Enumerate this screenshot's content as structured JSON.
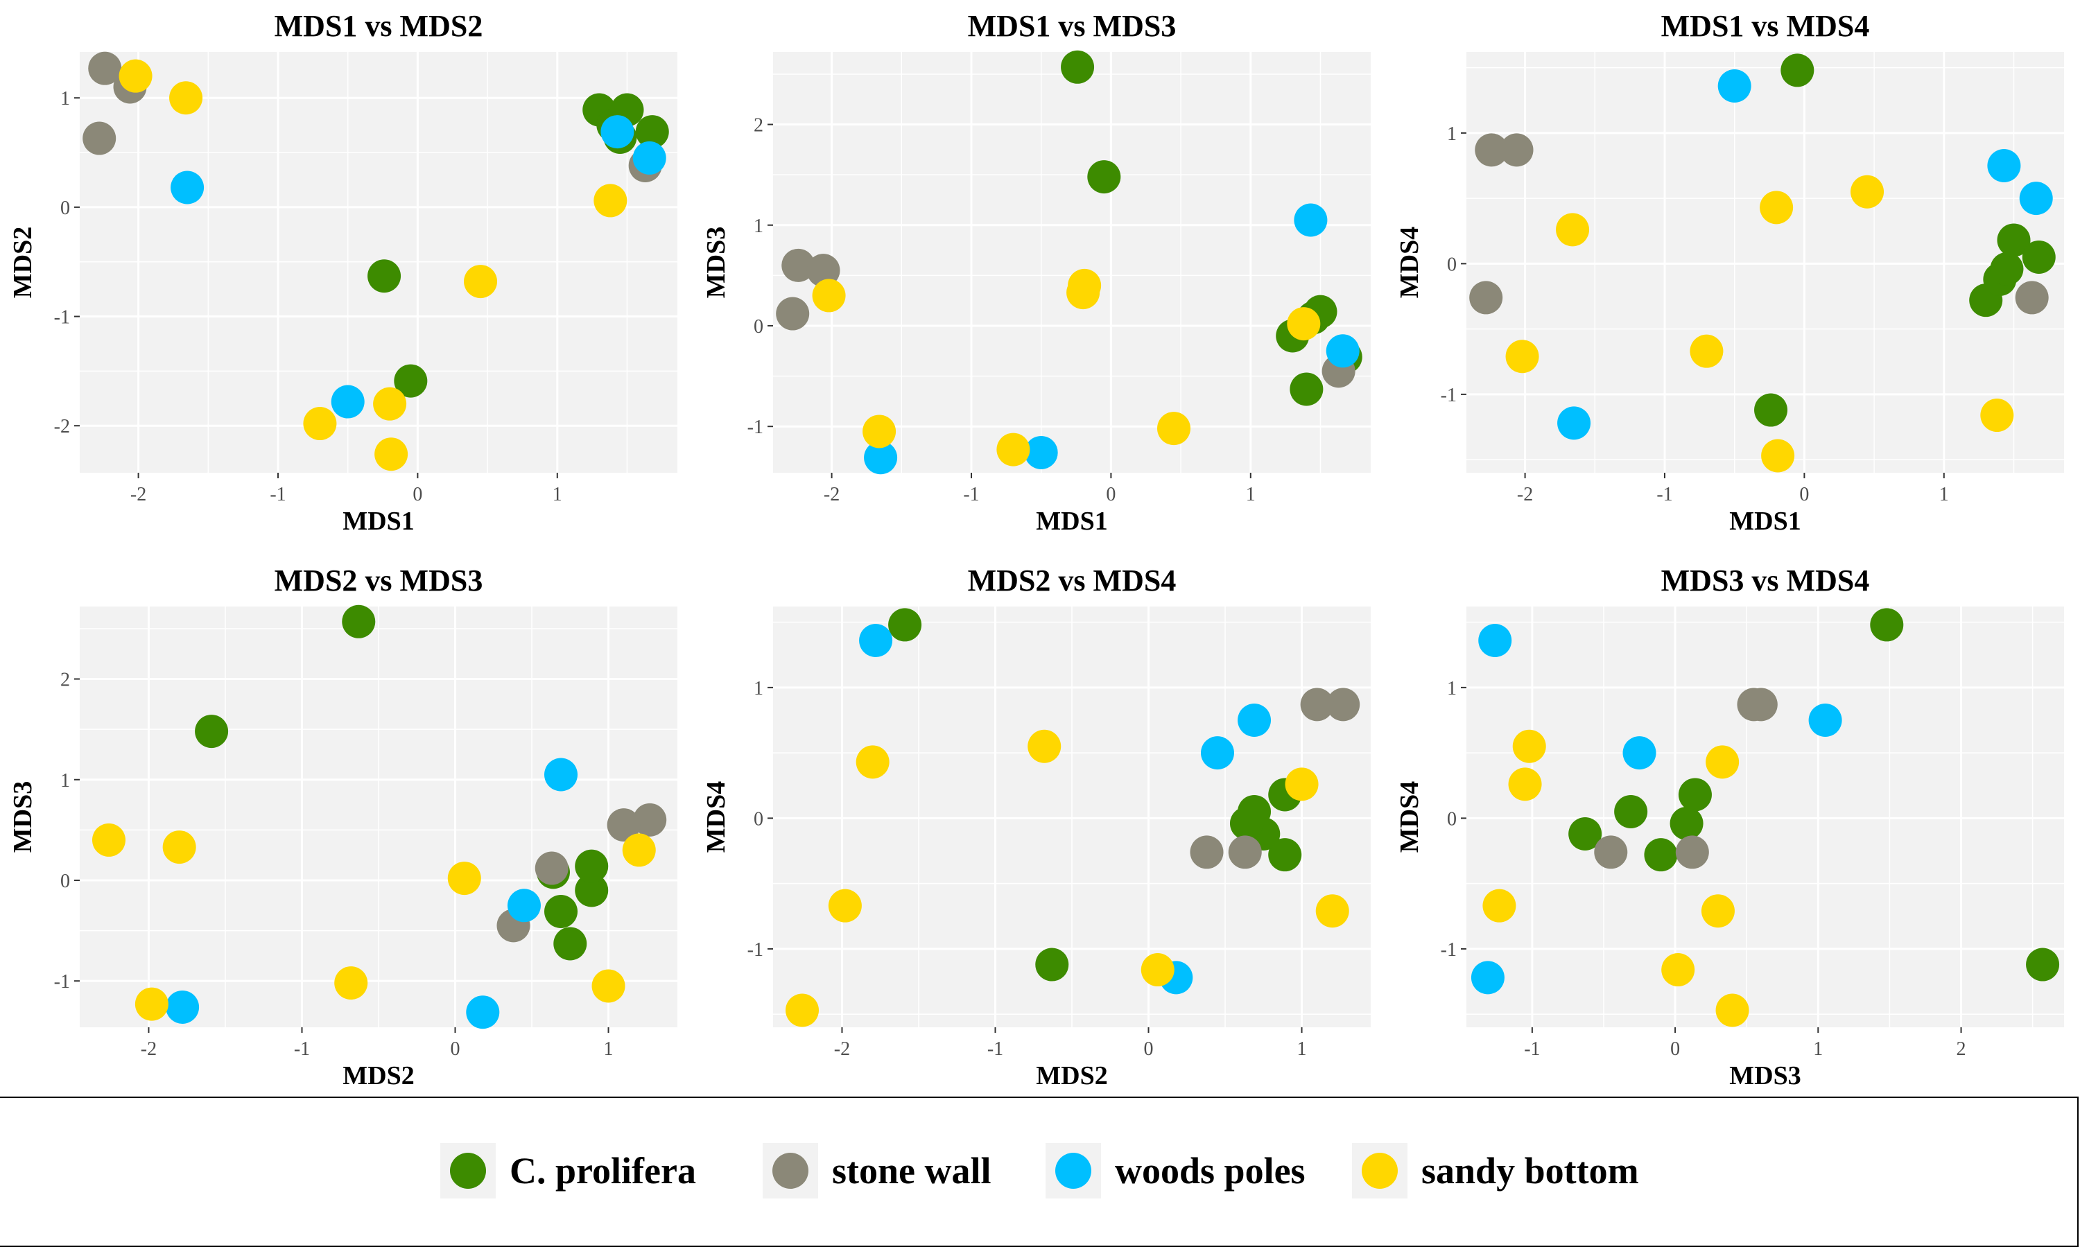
{
  "colors": {
    "panel_bg": "#f2f2f2",
    "grid": "#ffffff",
    "c_prolifera": "#3d8b00",
    "stone_wall": "#8b8878",
    "woods_poles": "#00bfff",
    "sandy_bottom": "#ffd700"
  },
  "legend": {
    "items": [
      {
        "label": "C. prolifera",
        "color": "#3d8b00"
      },
      {
        "label": "stone wall",
        "color": "#8b8878"
      },
      {
        "label": "woods poles",
        "color": "#00bfff"
      },
      {
        "label": "sandy bottom",
        "color": "#ffd700"
      }
    ]
  },
  "points": [
    {
      "group": "C. prolifera",
      "mds": [
        -0.24,
        -0.63,
        2.57,
        -1.12
      ]
    },
    {
      "group": "C. prolifera",
      "mds": [
        -0.05,
        -1.59,
        1.48,
        1.48
      ]
    },
    {
      "group": "C. prolifera",
      "mds": [
        1.3,
        0.89,
        -0.1,
        -0.28
      ]
    },
    {
      "group": "C. prolifera",
      "mds": [
        1.4,
        0.75,
        -0.63,
        -0.12
      ]
    },
    {
      "group": "C. prolifera",
      "mds": [
        1.45,
        0.64,
        0.08,
        -0.04
      ]
    },
    {
      "group": "C. prolifera",
      "mds": [
        1.5,
        0.89,
        0.14,
        0.18
      ]
    },
    {
      "group": "C. prolifera",
      "mds": [
        1.68,
        0.69,
        -0.31,
        0.05
      ]
    },
    {
      "group": "stone wall",
      "mds": [
        -2.24,
        1.27,
        0.6,
        0.87
      ]
    },
    {
      "group": "stone wall",
      "mds": [
        -2.06,
        1.1,
        0.55,
        0.87
      ]
    },
    {
      "group": "stone wall",
      "mds": [
        -2.28,
        0.63,
        0.12,
        -0.26
      ]
    },
    {
      "group": "stone wall",
      "mds": [
        1.63,
        0.38,
        -0.45,
        -0.26
      ]
    },
    {
      "group": "woods poles",
      "mds": [
        -0.5,
        -1.78,
        -1.26,
        1.36
      ]
    },
    {
      "group": "woods poles",
      "mds": [
        -1.65,
        0.18,
        -1.31,
        -1.22
      ]
    },
    {
      "group": "woods poles",
      "mds": [
        1.43,
        0.69,
        1.05,
        0.75
      ]
    },
    {
      "group": "woods poles",
      "mds": [
        1.66,
        0.45,
        -0.25,
        0.5
      ]
    },
    {
      "group": "sandy bottom",
      "mds": [
        -2.02,
        1.2,
        0.3,
        -0.71
      ]
    },
    {
      "group": "sandy bottom",
      "mds": [
        -1.66,
        1.0,
        -1.05,
        0.26
      ]
    },
    {
      "group": "sandy bottom",
      "mds": [
        -0.7,
        -1.98,
        -1.23,
        -0.67
      ]
    },
    {
      "group": "sandy bottom",
      "mds": [
        -0.2,
        -1.8,
        0.33,
        0.43
      ]
    },
    {
      "group": "sandy bottom",
      "mds": [
        -0.19,
        -2.26,
        0.4,
        -1.47
      ]
    },
    {
      "group": "sandy bottom",
      "mds": [
        0.45,
        -0.68,
        -1.02,
        0.55
      ]
    },
    {
      "group": "sandy bottom",
      "mds": [
        1.38,
        0.06,
        0.02,
        -1.16
      ]
    }
  ],
  "chart_data": [
    {
      "type": "scatter",
      "title": "MDS1 vs MDS2",
      "xlabel": "MDS1",
      "ylabel": "MDS2",
      "x_dim": 0,
      "y_dim": 1,
      "xlim": [
        -2.42,
        1.86
      ],
      "ylim": [
        -2.43,
        1.42
      ],
      "x_ticks": [
        -2,
        -1,
        0,
        1
      ],
      "x_tick_labels": [
        "-2",
        "-1",
        "0",
        "1"
      ],
      "y_ticks": [
        -2,
        -1,
        0,
        1
      ],
      "y_tick_labels": [
        "-2",
        "-1",
        "0",
        "1"
      ]
    },
    {
      "type": "scatter",
      "title": "MDS1 vs MDS3",
      "xlabel": "MDS1",
      "ylabel": "MDS3",
      "x_dim": 0,
      "y_dim": 2,
      "xlim": [
        -2.42,
        1.86
      ],
      "ylim": [
        -1.46,
        2.72
      ],
      "x_ticks": [
        -2,
        -1,
        0,
        1
      ],
      "x_tick_labels": [
        "-2",
        "-1",
        "0",
        "1"
      ],
      "y_ticks": [
        -1,
        0,
        1,
        2
      ],
      "y_tick_labels": [
        "-1",
        "0",
        "1",
        "2"
      ]
    },
    {
      "type": "scatter",
      "title": "MDS1 vs MDS4",
      "xlabel": "MDS1",
      "ylabel": "MDS4",
      "x_dim": 0,
      "y_dim": 3,
      "xlim": [
        -2.42,
        1.86
      ],
      "ylim": [
        -1.6,
        1.62
      ],
      "x_ticks": [
        -2,
        -1,
        0,
        1
      ],
      "x_tick_labels": [
        "-2",
        "-1",
        "0",
        "1"
      ],
      "y_ticks": [
        -1,
        0,
        1
      ],
      "y_tick_labels": [
        "-1",
        "0",
        "1"
      ]
    },
    {
      "type": "scatter",
      "title": "MDS2 vs MDS3",
      "xlabel": "MDS2",
      "ylabel": "MDS3",
      "x_dim": 1,
      "y_dim": 2,
      "xlim": [
        -2.45,
        1.45
      ],
      "ylim": [
        -1.46,
        2.72
      ],
      "x_ticks": [
        -2,
        -1,
        0,
        1
      ],
      "x_tick_labels": [
        "-2",
        "-1",
        "0",
        "1"
      ],
      "y_ticks": [
        -1,
        0,
        1,
        2
      ],
      "y_tick_labels": [
        "-1",
        "0",
        "1",
        "2"
      ]
    },
    {
      "type": "scatter",
      "title": "MDS2 vs MDS4",
      "xlabel": "MDS2",
      "ylabel": "MDS4",
      "x_dim": 1,
      "y_dim": 3,
      "xlim": [
        -2.45,
        1.45
      ],
      "ylim": [
        -1.6,
        1.62
      ],
      "x_ticks": [
        -2,
        -1,
        0,
        1
      ],
      "x_tick_labels": [
        "-2",
        "-1",
        "0",
        "1"
      ],
      "y_ticks": [
        -1,
        0,
        1
      ],
      "y_tick_labels": [
        "-1",
        "0",
        "1"
      ]
    },
    {
      "type": "scatter",
      "title": "MDS3 vs MDS4",
      "xlabel": "MDS3",
      "ylabel": "MDS4",
      "x_dim": 2,
      "y_dim": 3,
      "xlim": [
        -1.46,
        2.72
      ],
      "ylim": [
        -1.6,
        1.62
      ],
      "x_ticks": [
        -1,
        0,
        1,
        2
      ],
      "x_tick_labels": [
        "-1",
        "0",
        "1",
        "2"
      ],
      "y_ticks": [
        -1,
        0,
        1
      ],
      "y_tick_labels": [
        "-1",
        "0",
        "1"
      ]
    }
  ]
}
